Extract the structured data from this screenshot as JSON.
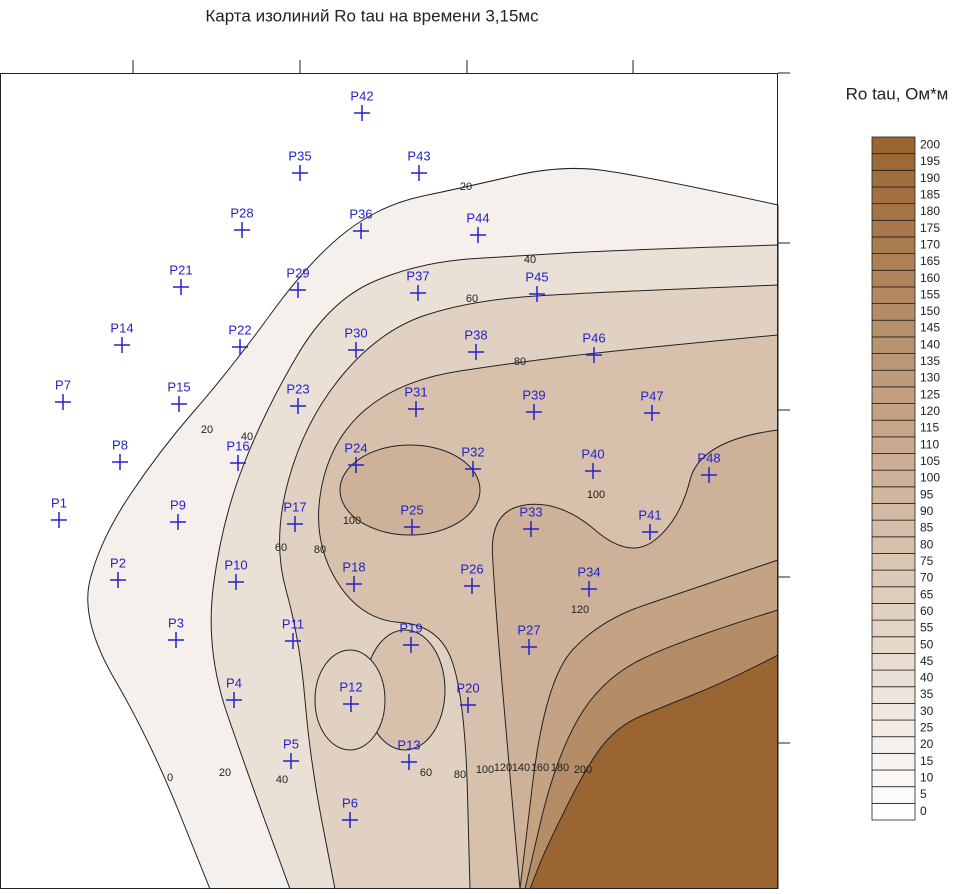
{
  "chart_data": {
    "type": "contour",
    "title": "Карта изолиний Ro tau на времени 3,15мс",
    "legend": {
      "title": "Ro tau, Ом*м",
      "levels": [
        0,
        5,
        10,
        15,
        20,
        25,
        30,
        35,
        40,
        45,
        50,
        55,
        60,
        65,
        70,
        75,
        80,
        85,
        90,
        95,
        100,
        105,
        110,
        115,
        120,
        125,
        130,
        135,
        140,
        145,
        150,
        155,
        160,
        165,
        170,
        175,
        180,
        185,
        190,
        195,
        200
      ],
      "color_low": "#ffffff",
      "color_high": "#9b6532"
    },
    "stations": [
      "P42",
      "P35",
      "P43",
      "P28",
      "P36",
      "P44",
      "P21",
      "P29",
      "P37",
      "P45",
      "P14",
      "P22",
      "P30",
      "P38",
      "P46",
      "P7",
      "P15",
      "P23",
      "P31",
      "P39",
      "P47",
      "P8",
      "P16",
      "P24",
      "P32",
      "P40",
      "P48",
      "P1",
      "P9",
      "P17",
      "P25",
      "P33",
      "P41",
      "P2",
      "P10",
      "P18",
      "P26",
      "P34",
      "P3",
      "P11",
      "P19",
      "P27",
      "P4",
      "P12",
      "P20",
      "P5",
      "P13",
      "P6"
    ],
    "contour_labels": [
      20,
      40,
      60,
      80,
      20,
      40,
      100,
      80,
      60,
      100,
      120,
      0,
      20,
      40,
      60,
      80,
      100,
      120,
      140,
      160,
      180,
      200
    ],
    "station_color": "#2323c8",
    "line_color": "#222222"
  }
}
